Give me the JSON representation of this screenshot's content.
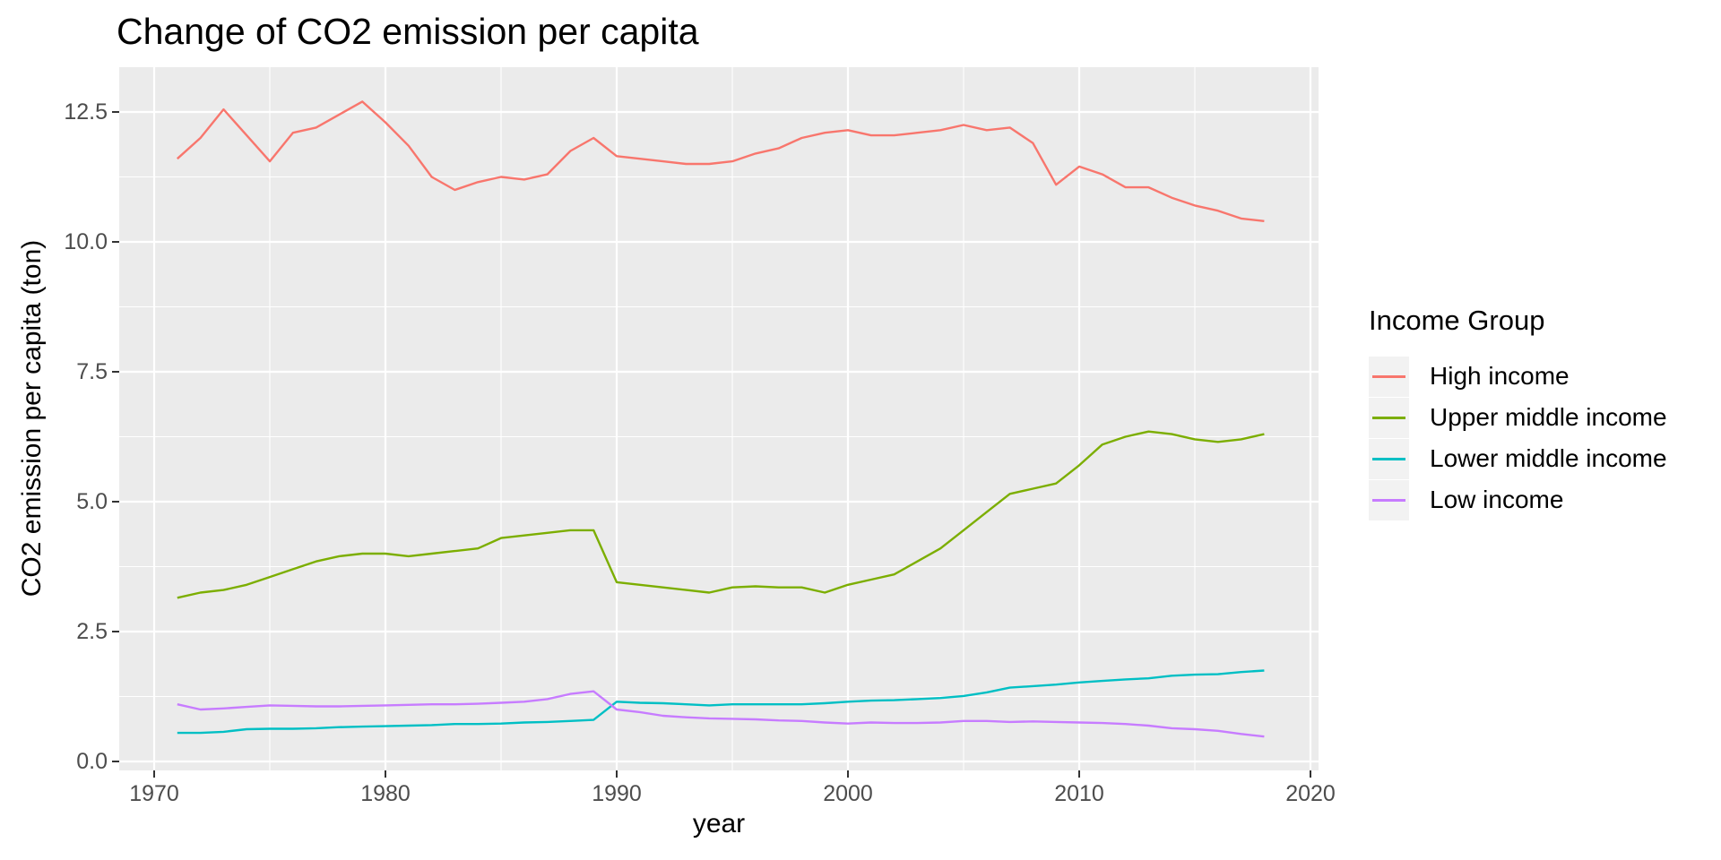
{
  "figure": {
    "title": "Change of CO2 emission per capita",
    "x_axis": {
      "label": "year",
      "tick_labels": [
        "1970",
        "1980",
        "1990",
        "2000",
        "2010",
        "2020"
      ]
    },
    "y_axis": {
      "label": "CO2 emission per capita (ton)",
      "tick_labels": [
        "0.0",
        "2.5",
        "5.0",
        "7.5",
        "10.0",
        "12.5"
      ]
    },
    "legend": {
      "title": "Income Group",
      "position": "right"
    }
  },
  "style": {
    "panel_background": "#EBEBEB",
    "grid_color": "#FFFFFF",
    "tick_mark_color": "#333333",
    "tick_label_color": "#4D4D4D",
    "legend_key_background": "#F2F2F2",
    "series_colors": {
      "high": "#F8766D",
      "upper_middle": "#7CAE00",
      "lower_middle": "#00BFC4",
      "low": "#C77CFF"
    }
  },
  "chart_data": {
    "type": "line",
    "title": "Change of CO2 emission per capita",
    "xlabel": "year",
    "ylabel": "CO2 emission per capita (ton)",
    "legend_title": "Income Group",
    "legend_position": "right",
    "grid": true,
    "x_breaks": [
      1970,
      1980,
      1990,
      2000,
      2010,
      2020
    ],
    "x_minor_breaks": [
      1975,
      1985,
      1995,
      2005,
      2015
    ],
    "y_breaks": [
      0.0,
      2.5,
      5.0,
      7.5,
      10.0,
      12.5
    ],
    "y_minor_breaks": [
      1.25,
      3.75,
      6.25,
      8.75,
      11.25
    ],
    "xlim": [
      1968.5,
      2020.35
    ],
    "ylim": [
      -0.18,
      13.36
    ],
    "x": [
      1971,
      1972,
      1973,
      1974,
      1975,
      1976,
      1977,
      1978,
      1979,
      1980,
      1981,
      1982,
      1983,
      1984,
      1985,
      1986,
      1987,
      1988,
      1989,
      1990,
      1991,
      1992,
      1993,
      1994,
      1995,
      1996,
      1997,
      1998,
      1999,
      2000,
      2001,
      2002,
      2003,
      2004,
      2005,
      2006,
      2007,
      2008,
      2009,
      2010,
      2011,
      2012,
      2013,
      2014,
      2015,
      2016,
      2017,
      2018
    ],
    "series": [
      {
        "name": "High income",
        "color": "#F8766D",
        "values": [
          11.6,
          12.0,
          12.55,
          12.05,
          11.55,
          12.1,
          12.2,
          12.45,
          12.7,
          12.3,
          11.85,
          11.25,
          11.0,
          11.15,
          11.25,
          11.2,
          11.3,
          11.75,
          12.0,
          11.65,
          11.6,
          11.55,
          11.5,
          11.5,
          11.55,
          11.7,
          11.8,
          12.0,
          12.1,
          12.15,
          12.05,
          12.05,
          12.1,
          12.15,
          12.25,
          12.15,
          12.2,
          11.9,
          11.1,
          11.45,
          11.3,
          11.05,
          11.05,
          10.85,
          10.7,
          10.6,
          10.45,
          10.4
        ]
      },
      {
        "name": "Upper middle income",
        "color": "#7CAE00",
        "values": [
          3.15,
          3.25,
          3.3,
          3.4,
          3.55,
          3.7,
          3.85,
          3.95,
          4.0,
          4.0,
          3.95,
          4.0,
          4.05,
          4.1,
          4.3,
          4.35,
          4.4,
          4.45,
          4.45,
          3.45,
          3.4,
          3.35,
          3.3,
          3.25,
          3.35,
          3.37,
          3.35,
          3.35,
          3.25,
          3.4,
          3.5,
          3.6,
          3.85,
          4.1,
          4.45,
          4.8,
          5.15,
          5.25,
          5.35,
          5.7,
          6.1,
          6.25,
          6.35,
          6.3,
          6.2,
          6.15,
          6.2,
          6.3
        ]
      },
      {
        "name": "Lower middle income",
        "color": "#00BFC4",
        "values": [
          0.55,
          0.55,
          0.57,
          0.62,
          0.63,
          0.63,
          0.64,
          0.66,
          0.67,
          0.68,
          0.69,
          0.7,
          0.72,
          0.72,
          0.73,
          0.75,
          0.76,
          0.78,
          0.8,
          1.15,
          1.13,
          1.12,
          1.1,
          1.08,
          1.1,
          1.1,
          1.1,
          1.1,
          1.12,
          1.15,
          1.17,
          1.18,
          1.2,
          1.22,
          1.26,
          1.33,
          1.42,
          1.45,
          1.48,
          1.52,
          1.55,
          1.58,
          1.6,
          1.65,
          1.67,
          1.68,
          1.72,
          1.75
        ]
      },
      {
        "name": "Low income",
        "color": "#C77CFF",
        "values": [
          1.1,
          1.0,
          1.02,
          1.05,
          1.08,
          1.07,
          1.06,
          1.06,
          1.07,
          1.08,
          1.09,
          1.1,
          1.1,
          1.11,
          1.13,
          1.15,
          1.2,
          1.3,
          1.35,
          1.0,
          0.95,
          0.88,
          0.85,
          0.83,
          0.82,
          0.81,
          0.79,
          0.78,
          0.75,
          0.73,
          0.75,
          0.74,
          0.74,
          0.75,
          0.78,
          0.78,
          0.76,
          0.77,
          0.76,
          0.75,
          0.74,
          0.72,
          0.69,
          0.64,
          0.62,
          0.59,
          0.53,
          0.48
        ]
      }
    ]
  }
}
